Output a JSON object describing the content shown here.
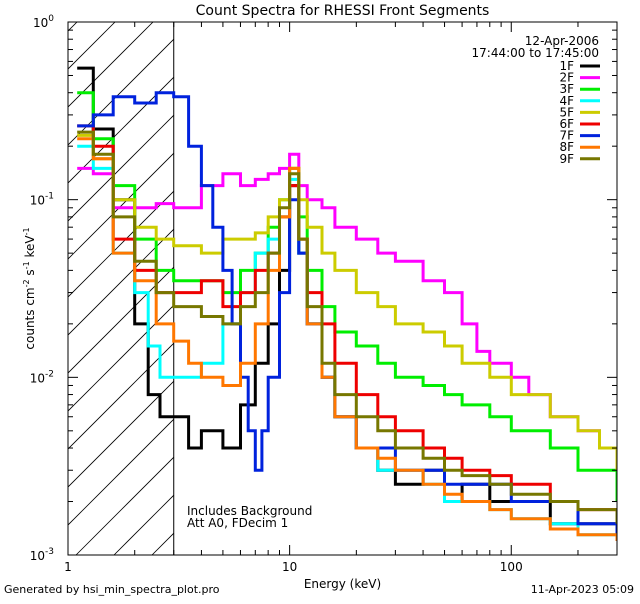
{
  "chart_data": {
    "type": "line",
    "title": "Count Spectra for RHESSI Front Segments",
    "xlabel": "Energy (keV)",
    "ylabel_parts": [
      "counts cm",
      "-2",
      " s",
      "-1",
      " keV",
      "-1"
    ],
    "xscale": "log",
    "yscale": "log",
    "xlim": [
      1,
      300
    ],
    "ylim": [
      0.001,
      1
    ],
    "x_ticks": [
      {
        "value": 1,
        "label": "1"
      },
      {
        "value": 10,
        "label": "10"
      },
      {
        "value": 100,
        "label": "100"
      }
    ],
    "y_ticks": [
      {
        "value": 1,
        "mant": "10",
        "exp": "0"
      },
      {
        "value": 0.1,
        "mant": "10",
        "exp": "-1"
      },
      {
        "value": 0.01,
        "mant": "10",
        "exp": "-2"
      },
      {
        "value": 0.001,
        "mant": "10",
        "exp": "-3"
      }
    ],
    "excluded_region": {
      "xmin": 1,
      "xmax": 3,
      "description": "hatched low-energy region"
    },
    "date_text": "12-Apr-2006",
    "time_text": "17:44:00 to 17:45:00",
    "annotation_lines": [
      "Includes Background",
      "Att A0, FDecim 1"
    ],
    "series": [
      {
        "name": "1F",
        "color": "#000000",
        "points": [
          [
            1.1,
            0.55
          ],
          [
            1.3,
            0.25
          ],
          [
            1.6,
            0.1
          ],
          [
            2.0,
            0.02
          ],
          [
            2.3,
            0.008
          ],
          [
            2.6,
            0.006
          ],
          [
            3.0,
            0.006
          ],
          [
            3.5,
            0.004
          ],
          [
            4,
            0.005
          ],
          [
            5,
            0.004
          ],
          [
            6,
            0.007
          ],
          [
            7,
            0.012
          ],
          [
            8,
            0.02
          ],
          [
            9,
            0.04
          ],
          [
            10,
            0.12
          ],
          [
            11,
            0.05
          ],
          [
            12,
            0.02
          ],
          [
            14,
            0.01
          ],
          [
            16,
            0.006
          ],
          [
            20,
            0.004
          ],
          [
            25,
            0.003
          ],
          [
            30,
            0.0025
          ],
          [
            40,
            0.003
          ],
          [
            50,
            0.002
          ],
          [
            60,
            0.0025
          ],
          [
            80,
            0.002
          ],
          [
            100,
            0.002
          ],
          [
            150,
            0.0015
          ],
          [
            200,
            0.0015
          ],
          [
            300,
            0.0012
          ]
        ]
      },
      {
        "name": "2F",
        "color": "#ff00ff",
        "points": [
          [
            1.1,
            0.15
          ],
          [
            1.3,
            0.14
          ],
          [
            1.6,
            0.09
          ],
          [
            2.0,
            0.09
          ],
          [
            2.5,
            0.095
          ],
          [
            3.0,
            0.09
          ],
          [
            4,
            0.12
          ],
          [
            5,
            0.14
          ],
          [
            6,
            0.12
          ],
          [
            7,
            0.13
          ],
          [
            8,
            0.14
          ],
          [
            9,
            0.15
          ],
          [
            10,
            0.18
          ],
          [
            11,
            0.12
          ],
          [
            12,
            0.1
          ],
          [
            14,
            0.09
          ],
          [
            16,
            0.07
          ],
          [
            20,
            0.06
          ],
          [
            25,
            0.05
          ],
          [
            30,
            0.045
          ],
          [
            40,
            0.035
          ],
          [
            50,
            0.03
          ],
          [
            60,
            0.02
          ],
          [
            70,
            0.014
          ],
          [
            80,
            0.012
          ],
          [
            100,
            0.01
          ],
          [
            120,
            0.008
          ],
          [
            150,
            0.006
          ],
          [
            200,
            0.005
          ],
          [
            250,
            0.004
          ],
          [
            300,
            0.003
          ]
        ]
      },
      {
        "name": "3F",
        "color": "#00ee00",
        "points": [
          [
            1.1,
            0.4
          ],
          [
            1.3,
            0.22
          ],
          [
            1.6,
            0.12
          ],
          [
            2.0,
            0.06
          ],
          [
            2.5,
            0.04
          ],
          [
            3.0,
            0.035
          ],
          [
            4,
            0.035
          ],
          [
            5,
            0.03
          ],
          [
            6,
            0.04
          ],
          [
            7,
            0.05
          ],
          [
            8,
            0.07
          ],
          [
            9,
            0.1
          ],
          [
            10,
            0.15
          ],
          [
            11,
            0.08
          ],
          [
            12,
            0.04
          ],
          [
            14,
            0.025
          ],
          [
            16,
            0.018
          ],
          [
            20,
            0.015
          ],
          [
            25,
            0.012
          ],
          [
            30,
            0.01
          ],
          [
            40,
            0.009
          ],
          [
            50,
            0.008
          ],
          [
            60,
            0.007
          ],
          [
            80,
            0.006
          ],
          [
            100,
            0.005
          ],
          [
            150,
            0.004
          ],
          [
            200,
            0.003
          ],
          [
            300,
            0.002
          ]
        ]
      },
      {
        "name": "4F",
        "color": "#00ffff",
        "points": [
          [
            1.1,
            0.2
          ],
          [
            1.3,
            0.15
          ],
          [
            1.6,
            0.05
          ],
          [
            2.0,
            0.03
          ],
          [
            2.3,
            0.015
          ],
          [
            2.6,
            0.01
          ],
          [
            3.0,
            0.01
          ],
          [
            4,
            0.012
          ],
          [
            5,
            0.02
          ],
          [
            6,
            0.03
          ],
          [
            7,
            0.05
          ],
          [
            8,
            0.06
          ],
          [
            9,
            0.08
          ],
          [
            10,
            0.13
          ],
          [
            11,
            0.05
          ],
          [
            12,
            0.02
          ],
          [
            14,
            0.01
          ],
          [
            16,
            0.006
          ],
          [
            20,
            0.004
          ],
          [
            25,
            0.003
          ],
          [
            30,
            0.003
          ],
          [
            40,
            0.0025
          ],
          [
            50,
            0.002
          ],
          [
            60,
            0.002
          ],
          [
            80,
            0.0018
          ],
          [
            100,
            0.0016
          ],
          [
            150,
            0.0015
          ],
          [
            200,
            0.0013
          ],
          [
            300,
            0.0012
          ]
        ]
      },
      {
        "name": "5F",
        "color": "#cccc00",
        "points": [
          [
            1.1,
            0.23
          ],
          [
            1.3,
            0.17
          ],
          [
            1.6,
            0.1
          ],
          [
            2.0,
            0.07
          ],
          [
            2.5,
            0.06
          ],
          [
            3.0,
            0.055
          ],
          [
            4,
            0.05
          ],
          [
            5,
            0.06
          ],
          [
            6,
            0.06
          ],
          [
            7,
            0.065
          ],
          [
            8,
            0.08
          ],
          [
            9,
            0.1
          ],
          [
            10,
            0.15
          ],
          [
            11,
            0.1
          ],
          [
            12,
            0.07
          ],
          [
            14,
            0.05
          ],
          [
            16,
            0.04
          ],
          [
            20,
            0.03
          ],
          [
            25,
            0.025
          ],
          [
            30,
            0.02
          ],
          [
            40,
            0.018
          ],
          [
            50,
            0.015
          ],
          [
            60,
            0.012
          ],
          [
            80,
            0.01
          ],
          [
            100,
            0.008
          ],
          [
            150,
            0.006
          ],
          [
            200,
            0.005
          ],
          [
            250,
            0.004
          ],
          [
            300,
            0.003
          ]
        ]
      },
      {
        "name": "6F",
        "color": "#ee0000",
        "points": [
          [
            1.1,
            0.26
          ],
          [
            1.3,
            0.2
          ],
          [
            1.6,
            0.06
          ],
          [
            2.0,
            0.04
          ],
          [
            2.5,
            0.03
          ],
          [
            3.0,
            0.03
          ],
          [
            4,
            0.035
          ],
          [
            5,
            0.025
          ],
          [
            6,
            0.03
          ],
          [
            7,
            0.04
          ],
          [
            8,
            0.05
          ],
          [
            9,
            0.08
          ],
          [
            10,
            0.12
          ],
          [
            11,
            0.06
          ],
          [
            12,
            0.03
          ],
          [
            14,
            0.02
          ],
          [
            16,
            0.012
          ],
          [
            20,
            0.008
          ],
          [
            25,
            0.006
          ],
          [
            30,
            0.005
          ],
          [
            40,
            0.004
          ],
          [
            50,
            0.0035
          ],
          [
            60,
            0.003
          ],
          [
            80,
            0.0028
          ],
          [
            100,
            0.0025
          ],
          [
            150,
            0.002
          ],
          [
            200,
            0.0018
          ],
          [
            300,
            0.0015
          ]
        ]
      },
      {
        "name": "7F",
        "color": "#0022dd",
        "points": [
          [
            1.1,
            0.26
          ],
          [
            1.3,
            0.3
          ],
          [
            1.6,
            0.38
          ],
          [
            2.0,
            0.35
          ],
          [
            2.5,
            0.4
          ],
          [
            3.0,
            0.38
          ],
          [
            3.5,
            0.2
          ],
          [
            4,
            0.12
          ],
          [
            4.5,
            0.07
          ],
          [
            5,
            0.04
          ],
          [
            5.5,
            0.02
          ],
          [
            6,
            0.01
          ],
          [
            6.5,
            0.005
          ],
          [
            7,
            0.003
          ],
          [
            7.5,
            0.005
          ],
          [
            8,
            0.01
          ],
          [
            9,
            0.03
          ],
          [
            10,
            0.1
          ],
          [
            11,
            0.05
          ],
          [
            12,
            0.02
          ],
          [
            14,
            0.01
          ],
          [
            16,
            0.006
          ],
          [
            20,
            0.004
          ],
          [
            30,
            0.003
          ],
          [
            50,
            0.0025
          ],
          [
            100,
            0.002
          ],
          [
            200,
            0.0015
          ],
          [
            300,
            0.0012
          ]
        ]
      },
      {
        "name": "8F",
        "color": "#ff7700",
        "points": [
          [
            1.1,
            0.22
          ],
          [
            1.3,
            0.17
          ],
          [
            1.6,
            0.05
          ],
          [
            2.0,
            0.035
          ],
          [
            2.5,
            0.02
          ],
          [
            3.0,
            0.016
          ],
          [
            3.5,
            0.012
          ],
          [
            4,
            0.01
          ],
          [
            5,
            0.009
          ],
          [
            6,
            0.012
          ],
          [
            7,
            0.02
          ],
          [
            8,
            0.04
          ],
          [
            9,
            0.08
          ],
          [
            10,
            0.15
          ],
          [
            11,
            0.06
          ],
          [
            12,
            0.02
          ],
          [
            14,
            0.01
          ],
          [
            16,
            0.006
          ],
          [
            20,
            0.004
          ],
          [
            25,
            0.0035
          ],
          [
            30,
            0.003
          ],
          [
            40,
            0.0025
          ],
          [
            50,
            0.0022
          ],
          [
            60,
            0.002
          ],
          [
            80,
            0.0018
          ],
          [
            100,
            0.0016
          ],
          [
            150,
            0.0014
          ],
          [
            200,
            0.0013
          ],
          [
            300,
            0.0012
          ]
        ]
      },
      {
        "name": "9F",
        "color": "#777700",
        "points": [
          [
            1.1,
            0.24
          ],
          [
            1.3,
            0.18
          ],
          [
            1.6,
            0.08
          ],
          [
            2.0,
            0.045
          ],
          [
            2.5,
            0.03
          ],
          [
            3.0,
            0.025
          ],
          [
            4,
            0.022
          ],
          [
            5,
            0.02
          ],
          [
            6,
            0.025
          ],
          [
            7,
            0.03
          ],
          [
            8,
            0.05
          ],
          [
            9,
            0.09
          ],
          [
            10,
            0.14
          ],
          [
            11,
            0.06
          ],
          [
            12,
            0.025
          ],
          [
            14,
            0.012
          ],
          [
            16,
            0.008
          ],
          [
            20,
            0.006
          ],
          [
            25,
            0.005
          ],
          [
            30,
            0.004
          ],
          [
            40,
            0.0035
          ],
          [
            50,
            0.003
          ],
          [
            60,
            0.0028
          ],
          [
            80,
            0.0025
          ],
          [
            100,
            0.0022
          ],
          [
            150,
            0.002
          ],
          [
            200,
            0.0018
          ],
          [
            300,
            0.0015
          ]
        ]
      }
    ]
  },
  "footer": {
    "left": "Generated by hsi_min_spectra_plot.pro",
    "right": "11-Apr-2023 05:09"
  }
}
